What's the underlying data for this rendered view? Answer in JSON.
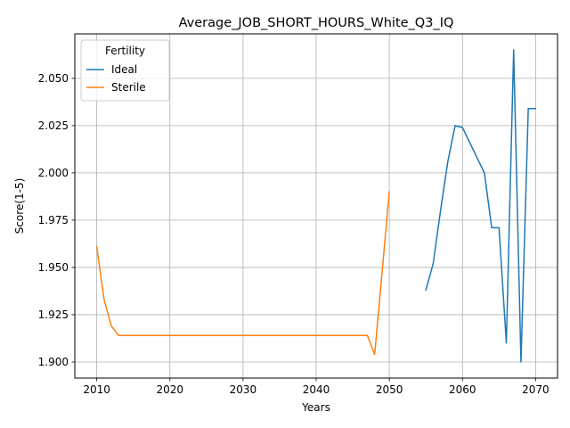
{
  "chart_data": {
    "type": "line",
    "title": "Average_JOB_SHORT_HOURS_White_Q3_IQ",
    "xlabel": "Years",
    "ylabel": "Score(1-5)",
    "xlim": [
      2007,
      2073
    ],
    "ylim": [
      1.8915,
      2.0735
    ],
    "xticks": [
      2010,
      2020,
      2030,
      2040,
      2050,
      2060,
      2070
    ],
    "yticks": [
      1.9,
      1.925,
      1.95,
      1.975,
      2.0,
      2.025,
      2.05
    ],
    "ytick_labels": [
      "1.900",
      "1.925",
      "1.950",
      "1.975",
      "2.000",
      "2.025",
      "2.050"
    ],
    "grid": true,
    "legend": {
      "title": "Fertility",
      "position": "upper-left"
    },
    "series": [
      {
        "name": "Ideal",
        "color": "#1f77b4",
        "x": [
          2055,
          2056,
          2057,
          2058,
          2059,
          2060,
          2061,
          2062,
          2063,
          2064,
          2065,
          2066,
          2067,
          2068,
          2069,
          2070
        ],
        "y": [
          1.938,
          1.952,
          1.98,
          2.006,
          2.025,
          2.024,
          2.016,
          2.008,
          2.0,
          1.971,
          1.971,
          1.91,
          2.065,
          1.9,
          2.034,
          2.034
        ]
      },
      {
        "name": "Sterile",
        "color": "#ff7f0e",
        "x": [
          2010,
          2011,
          2012,
          2013,
          2014,
          2015,
          2016,
          2017,
          2018,
          2019,
          2020,
          2021,
          2022,
          2023,
          2024,
          2025,
          2026,
          2027,
          2028,
          2029,
          2030,
          2031,
          2032,
          2033,
          2034,
          2035,
          2036,
          2037,
          2038,
          2039,
          2040,
          2041,
          2042,
          2043,
          2044,
          2045,
          2046,
          2047,
          2048,
          2049,
          2050
        ],
        "y": [
          1.961,
          1.933,
          1.919,
          1.914,
          1.914,
          1.914,
          1.914,
          1.914,
          1.914,
          1.914,
          1.914,
          1.914,
          1.914,
          1.914,
          1.914,
          1.914,
          1.914,
          1.914,
          1.914,
          1.914,
          1.914,
          1.914,
          1.914,
          1.914,
          1.914,
          1.914,
          1.914,
          1.914,
          1.914,
          1.914,
          1.914,
          1.914,
          1.914,
          1.914,
          1.914,
          1.914,
          1.914,
          1.914,
          1.904,
          1.947,
          1.99
        ]
      }
    ]
  }
}
